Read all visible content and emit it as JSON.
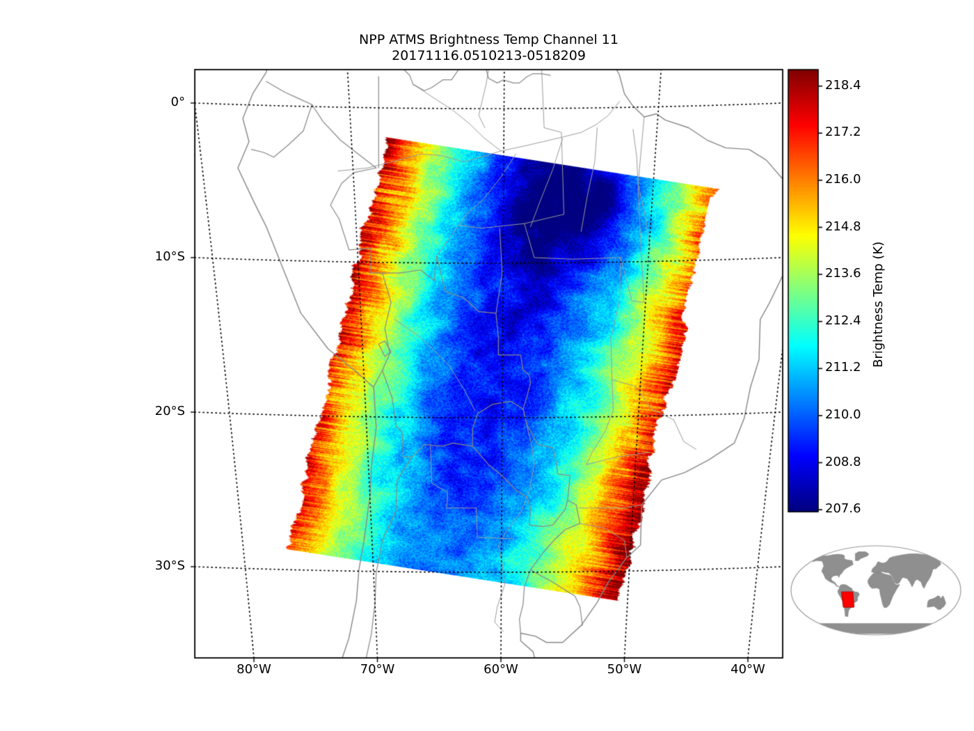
{
  "title": {
    "line1": "NPP ATMS Brightness Temp Channel 11",
    "line2": "20171116.0510213-0518209"
  },
  "axes": {
    "y_ticks": [
      {
        "label": "0°",
        "lat": 0
      },
      {
        "label": "10°S",
        "lat": -10
      },
      {
        "label": "20°S",
        "lat": -20
      },
      {
        "label": "30°S",
        "lat": -30
      }
    ],
    "x_ticks": [
      {
        "label": "80°W",
        "lon": -80
      },
      {
        "label": "70°W",
        "lon": -70
      },
      {
        "label": "60°W",
        "lon": -60
      },
      {
        "label": "50°W",
        "lon": -50
      },
      {
        "label": "40°W",
        "lon": -40
      }
    ]
  },
  "colorbar": {
    "label": "Brightness Temp (K)",
    "tick_labels": [
      "218.4",
      "217.2",
      "216.0",
      "214.8",
      "213.6",
      "212.4",
      "211.2",
      "210.0",
      "208.8",
      "207.6"
    ],
    "tick_values": [
      218.4,
      217.2,
      216.0,
      214.8,
      213.6,
      212.4,
      211.2,
      210.0,
      208.8,
      207.6
    ],
    "vmin": 207.55,
    "vmax": 218.82,
    "colormap": "jet",
    "jet_stops": [
      [
        0.0,
        "#000080"
      ],
      [
        0.125,
        "#0000ff"
      ],
      [
        0.375,
        "#00ffff"
      ],
      [
        0.625,
        "#ffff00"
      ],
      [
        0.875,
        "#ff0000"
      ],
      [
        1.0,
        "#800000"
      ]
    ]
  },
  "colors": {
    "frame": "#000000",
    "graticule": "#000000",
    "country_line": "#878787",
    "state_line": "#9b9b9b",
    "river_line": "#9b9b9b",
    "inset_land": "#8f8f8f",
    "inset_outline": "#999999",
    "inset_region": "#ff0000"
  },
  "chart_data": {
    "type": "heatmap",
    "title": "NPP ATMS Brightness Temp Channel 11",
    "subtitle": "20171116.0510213-0518209",
    "variable": "Brightness Temp (K)",
    "colormap": "jet",
    "value_range_K": [
      207.6,
      218.4
    ],
    "colorbar_ticks_K": [
      218.4,
      217.2,
      216.0,
      214.8,
      213.6,
      212.4,
      211.2,
      210.0,
      208.8,
      207.6
    ],
    "x_axis": {
      "tick_labels": [
        "80°W",
        "70°W",
        "60°W",
        "50°W",
        "40°W"
      ],
      "tick_lons": [
        -80,
        -70,
        -60,
        -50,
        -40
      ]
    },
    "y_axis": {
      "tick_labels": [
        "0°",
        "10°S",
        "20°S",
        "30°S"
      ],
      "tick_lats": [
        0,
        -10,
        -20,
        -30
      ]
    },
    "grid": "dotted graticule",
    "legend_position": "right colorbar",
    "swath_summary": "Polar-orbiter swath tilted ~9° clockwise over central South America; coldest ~208-210 K (deep blue) along swath center, warming to ~216-218.4 K (orange/dark red) at both scan edges with ragged warm fringes",
    "inset": "Global locator globe at lower right with scene footprint marked as red rectangle over central South America"
  }
}
